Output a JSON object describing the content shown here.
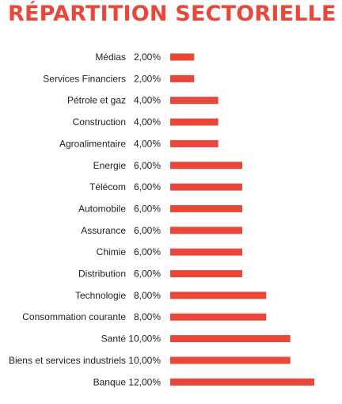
{
  "chart_data": {
    "type": "bar",
    "orientation": "horizontal",
    "title": "RÉPARTITION SECTORIELLE",
    "categories": [
      "Médias",
      "Services Financiers",
      "Pétrole et gaz",
      "Construction",
      "Agroalimentaire",
      "Energie",
      "Télécom",
      "Automobile",
      "Assurance",
      "Chimie",
      "Distribution",
      "Technologie",
      "Consommation courante",
      "Santé",
      "Biens et services industriels",
      "Banque"
    ],
    "values": [
      2,
      2,
      4,
      4,
      4,
      6,
      6,
      6,
      6,
      6,
      6,
      8,
      8,
      10,
      10,
      12
    ],
    "value_labels": [
      "2,00%",
      "2,00%",
      "4,00%",
      "4,00%",
      "4,00%",
      "6,00%",
      "6,00%",
      "6,00%",
      "6,00%",
      "6,00%",
      "6,00%",
      "8,00%",
      "8,00%",
      "10,00%",
      "10,00%",
      "12,00%"
    ],
    "xlabel": "",
    "ylabel": "",
    "xlim": [
      0,
      12
    ],
    "grid": false,
    "legend": "none",
    "bar_color": "#e8473a"
  }
}
